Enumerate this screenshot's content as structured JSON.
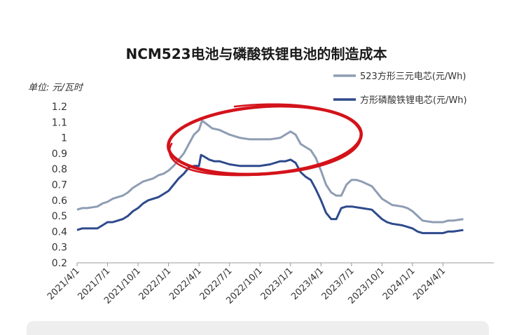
{
  "chart_data": {
    "type": "line",
    "title": "NCM523电池与磷酸铁锂电池的制造成本",
    "unit_label": "单位: 元/瓦时",
    "ylim": [
      0.2,
      1.2
    ],
    "yticks": [
      "1.2",
      "1.1",
      "1",
      "0.9",
      "0.8",
      "0.7",
      "0.6",
      "0.5",
      "0.4",
      "0.3",
      "0.2"
    ],
    "yticks_values": [
      1.2,
      1.1,
      1.0,
      0.9,
      0.8,
      0.7,
      0.6,
      0.5,
      0.4,
      0.3,
      0.2
    ],
    "xlim": [
      0,
      41
    ],
    "xticks": [
      "2021/4/1",
      "2021/7/1",
      "2021/10/1",
      "2022/1/1",
      "2022/4/1",
      "2022/7/1",
      "2022/10/1",
      "2023/1/1",
      "2023/4/1",
      "2023/7/1",
      "2023/10/1",
      "2024/1/1",
      "2024/4/1"
    ],
    "xticks_values": [
      0,
      3,
      6,
      9,
      12,
      15,
      18,
      21,
      24,
      27,
      30,
      33,
      36
    ],
    "legend_position": "top-right",
    "series": [
      {
        "name": "523方形三元电芯(元/Wh)",
        "color": "#8e9db3",
        "points": [
          [
            0,
            0.54
          ],
          [
            0.5,
            0.55
          ],
          [
            1,
            0.55
          ],
          [
            2,
            0.56
          ],
          [
            2.5,
            0.58
          ],
          [
            3,
            0.59
          ],
          [
            3.5,
            0.61
          ],
          [
            4,
            0.62
          ],
          [
            4.5,
            0.63
          ],
          [
            5,
            0.65
          ],
          [
            5.5,
            0.68
          ],
          [
            6,
            0.7
          ],
          [
            6.5,
            0.72
          ],
          [
            7,
            0.73
          ],
          [
            7.5,
            0.74
          ],
          [
            8,
            0.76
          ],
          [
            8.5,
            0.77
          ],
          [
            9,
            0.79
          ],
          [
            9.5,
            0.82
          ],
          [
            10,
            0.86
          ],
          [
            10.5,
            0.9
          ],
          [
            11,
            0.96
          ],
          [
            11.5,
            1.02
          ],
          [
            12,
            1.05
          ],
          [
            12.3,
            1.11
          ],
          [
            12.7,
            1.09
          ],
          [
            13.3,
            1.06
          ],
          [
            14,
            1.05
          ],
          [
            15,
            1.02
          ],
          [
            16,
            1.0
          ],
          [
            17,
            0.99
          ],
          [
            18,
            0.99
          ],
          [
            19,
            0.99
          ],
          [
            20,
            1.0
          ],
          [
            20.5,
            1.02
          ],
          [
            21,
            1.04
          ],
          [
            21.5,
            1.02
          ],
          [
            22,
            0.96
          ],
          [
            22.5,
            0.94
          ],
          [
            23,
            0.92
          ],
          [
            23.5,
            0.87
          ],
          [
            24,
            0.79
          ],
          [
            24.5,
            0.7
          ],
          [
            25,
            0.65
          ],
          [
            25.5,
            0.63
          ],
          [
            26,
            0.63
          ],
          [
            26.5,
            0.7
          ],
          [
            27,
            0.73
          ],
          [
            27.5,
            0.73
          ],
          [
            28,
            0.72
          ],
          [
            29,
            0.69
          ],
          [
            29.5,
            0.65
          ],
          [
            30,
            0.61
          ],
          [
            30.5,
            0.59
          ],
          [
            31,
            0.57
          ],
          [
            32,
            0.56
          ],
          [
            32.5,
            0.55
          ],
          [
            33,
            0.53
          ],
          [
            33.5,
            0.5
          ],
          [
            34,
            0.47
          ],
          [
            35,
            0.46
          ],
          [
            36,
            0.46
          ],
          [
            36.5,
            0.47
          ],
          [
            37,
            0.47
          ],
          [
            38,
            0.48
          ]
        ]
      },
      {
        "name": "方形磷酸铁锂电芯(元/Wh)",
        "color": "#2e4a8c",
        "points": [
          [
            0,
            0.41
          ],
          [
            0.5,
            0.42
          ],
          [
            2,
            0.42
          ],
          [
            2.5,
            0.44
          ],
          [
            3,
            0.46
          ],
          [
            3.5,
            0.46
          ],
          [
            4,
            0.47
          ],
          [
            4.5,
            0.48
          ],
          [
            5,
            0.5
          ],
          [
            5.5,
            0.53
          ],
          [
            6,
            0.55
          ],
          [
            6.5,
            0.58
          ],
          [
            7,
            0.6
          ],
          [
            7.5,
            0.61
          ],
          [
            8,
            0.62
          ],
          [
            8.5,
            0.64
          ],
          [
            9,
            0.66
          ],
          [
            9.5,
            0.7
          ],
          [
            10,
            0.74
          ],
          [
            10.5,
            0.77
          ],
          [
            11,
            0.81
          ],
          [
            11.5,
            0.82
          ],
          [
            12,
            0.82
          ],
          [
            12.2,
            0.89
          ],
          [
            12.5,
            0.88
          ],
          [
            13,
            0.86
          ],
          [
            13.5,
            0.85
          ],
          [
            14,
            0.85
          ],
          [
            15,
            0.83
          ],
          [
            16,
            0.82
          ],
          [
            17,
            0.82
          ],
          [
            18,
            0.82
          ],
          [
            19,
            0.83
          ],
          [
            20,
            0.85
          ],
          [
            20.5,
            0.85
          ],
          [
            21,
            0.86
          ],
          [
            21.5,
            0.84
          ],
          [
            22,
            0.78
          ],
          [
            22.5,
            0.75
          ],
          [
            23,
            0.73
          ],
          [
            23.5,
            0.67
          ],
          [
            24,
            0.6
          ],
          [
            24.5,
            0.52
          ],
          [
            25,
            0.48
          ],
          [
            25.5,
            0.48
          ],
          [
            26,
            0.55
          ],
          [
            26.5,
            0.56
          ],
          [
            27,
            0.56
          ],
          [
            28,
            0.55
          ],
          [
            29,
            0.54
          ],
          [
            29.5,
            0.51
          ],
          [
            30,
            0.48
          ],
          [
            30.5,
            0.46
          ],
          [
            31,
            0.45
          ],
          [
            32,
            0.44
          ],
          [
            32.5,
            0.43
          ],
          [
            33,
            0.42
          ],
          [
            33.5,
            0.4
          ],
          [
            34,
            0.39
          ],
          [
            35,
            0.39
          ],
          [
            36,
            0.39
          ],
          [
            36.5,
            0.4
          ],
          [
            37,
            0.4
          ],
          [
            38,
            0.41
          ]
        ]
      }
    ]
  }
}
